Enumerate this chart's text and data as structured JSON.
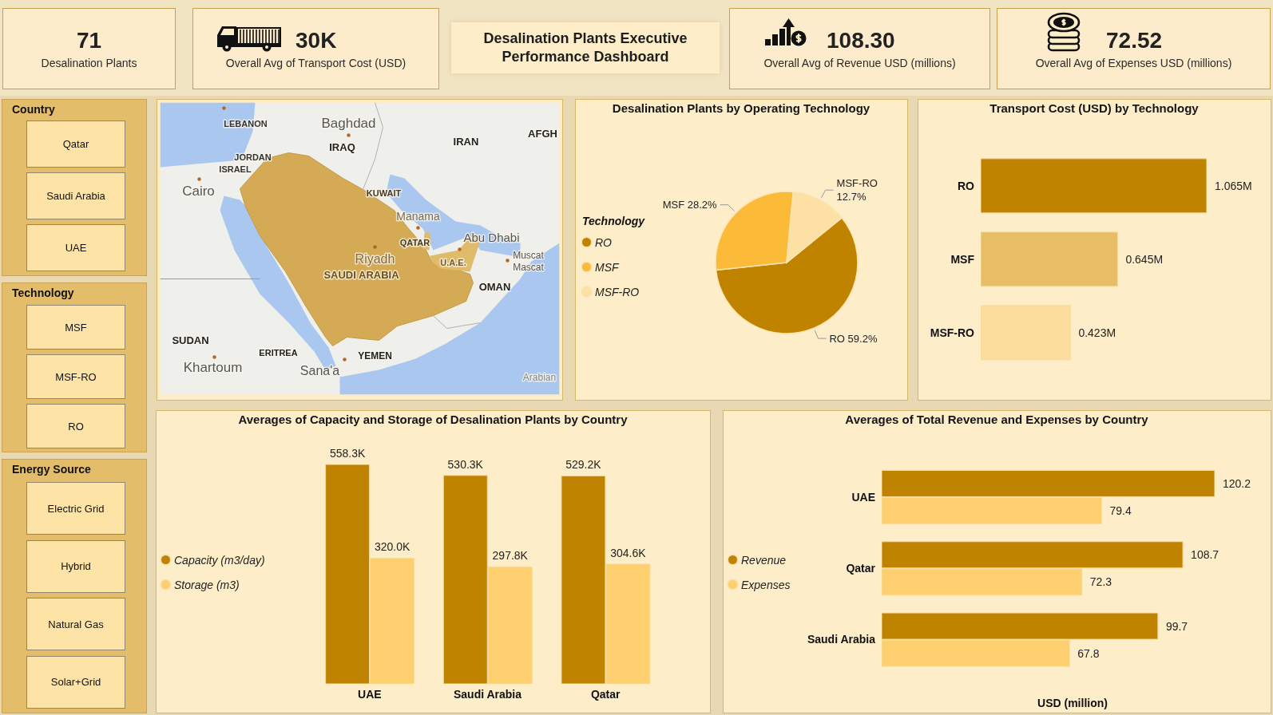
{
  "chart_data": [
    {
      "type": "other",
      "title": "Desalination Plants Executive Performance Dashboard",
      "categories": [
        "Desalination Plants",
        "Overall Avg of Transport Cost (USD)",
        "Overall Avg of Revenue USD (millions)",
        "Overall Avg of Expenses USD (millions)"
      ],
      "value_labels": [
        "71",
        "30K",
        "108.30",
        "72.52"
      ]
    },
    {
      "type": "other",
      "title": "Country",
      "categories": [
        "Qatar",
        "Saudi Arabia",
        "UAE"
      ]
    },
    {
      "type": "other",
      "title": "Technology",
      "categories": [
        "MSF",
        "MSF-RO",
        "RO"
      ]
    },
    {
      "type": "other",
      "title": "Energy Source",
      "categories": [
        "Electric Grid",
        "Hybrid",
        "Natural Gas",
        "Solar+Grid"
      ]
    },
    {
      "type": "other",
      "annotations": [
        "LEBANON",
        "Baghdad",
        "IRAQ",
        "IRAN",
        "AFGH",
        "JORDAN",
        "ISRAEL",
        "Cairo",
        "KUWAIT",
        "Manama",
        "QATAR",
        "Abu Dhabi",
        "Riyadh",
        "SAUDI ARABIA",
        "U.A.E.",
        "Muscat",
        "Mascat",
        "OMAN",
        "SUDAN",
        "ERITREA",
        "YEMEN",
        "Khartoum",
        "Sana'a",
        "Arabian"
      ]
    },
    {
      "type": "pie",
      "title": "Desalination Plants by Operating Technology",
      "legend_title": "Technology",
      "legend": "left",
      "categories": [
        "RO",
        "MSF",
        "MSF-RO"
      ],
      "values": [
        59.2,
        28.2,
        12.7
      ],
      "value_labels": [
        "59.2%",
        "28.2%",
        "12.7%"
      ],
      "colors": [
        "#c08300",
        "#fbba38",
        "#fde0a3"
      ]
    },
    {
      "type": "bar",
      "orientation": "horizontal",
      "title": "Transport Cost (USD) by Technology",
      "categories": [
        "RO",
        "MSF",
        "MSF-RO"
      ],
      "values": [
        1.065,
        0.645,
        0.423
      ],
      "value_labels": [
        "1.065M",
        "0.645M",
        "0.423M"
      ],
      "colors": [
        "#c08300",
        "#e7bd66",
        "#fddd9d"
      ],
      "tick_labels": "y"
    },
    {
      "type": "bar",
      "title": "Averages of Capacity and Storage of Desalination Plants by Country",
      "categories": [
        "UAE",
        "Saudi Arabia",
        "Qatar"
      ],
      "series": [
        {
          "name": "Capacity (m3/day)",
          "color": "#c08300",
          "values": [
            558300,
            530300,
            529200
          ],
          "value_labels": [
            "558.3K",
            "530.3K",
            "529.2K"
          ]
        },
        {
          "name": "Storage (m3)",
          "color": "#fdcf6e",
          "values": [
            320000,
            297800,
            304600
          ],
          "value_labels": [
            "320.0K",
            "297.8K",
            "304.6K"
          ]
        }
      ],
      "legend": "left",
      "tick_labels": "x"
    },
    {
      "type": "bar",
      "orientation": "horizontal",
      "title": "Averages of Total Revenue and Expenses by Country",
      "xlabel": "USD (million)",
      "categories": [
        "UAE",
        "Qatar",
        "Saudi Arabia"
      ],
      "series": [
        {
          "name": "Revenue",
          "color": "#c08300",
          "values": [
            120.2,
            108.7,
            99.7
          ]
        },
        {
          "name": "Expenses",
          "color": "#fdcf6e",
          "values": [
            79.4,
            72.3,
            67.8
          ]
        }
      ],
      "data_labels": true,
      "legend": "left",
      "tick_labels": "y"
    }
  ]
}
